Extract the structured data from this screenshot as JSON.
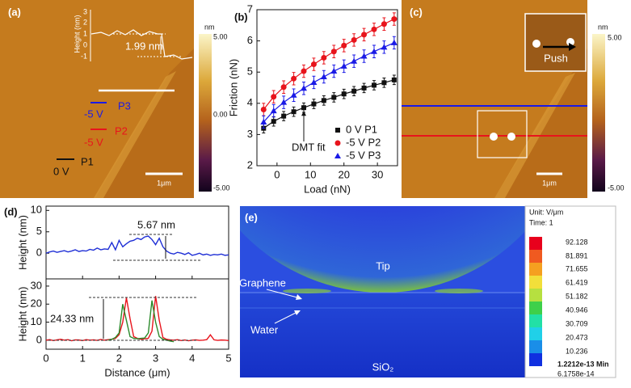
{
  "panels": {
    "a": {
      "label": "(a)",
      "inset_ylabel": "Height (nm)",
      "inset_ticks": [
        "3",
        "2",
        "1",
        "0",
        "-1"
      ],
      "inset_annotation": "1.99 nm",
      "labels": [
        {
          "voltage": "-5 V",
          "point": "P3"
        },
        {
          "voltage": "-5 V",
          "point": "P2"
        },
        {
          "voltage": "0 V",
          "point": "P1"
        }
      ],
      "scale_bar": "1μm",
      "colorbar": {
        "unit": "nm",
        "ticks": [
          "5.00",
          "0.00",
          "-5.00"
        ]
      }
    },
    "c": {
      "label": "(c)",
      "inset_annotation": "Push",
      "scale_bar": "1μm",
      "colorbar": {
        "unit": "nm",
        "ticks": [
          "5.00",
          "-5.00"
        ]
      }
    },
    "e": {
      "label": "(e)",
      "unit": "Unit: V/μm",
      "time": "Time: 1",
      "legend": [
        "92.128",
        "81.891",
        "71.655",
        "61.419",
        "51.182",
        "40.946",
        "30.709",
        "20.473",
        "10.236",
        "1.2212e-13 Min",
        "6.1758e-14"
      ],
      "labels": {
        "tip": "Tip",
        "graphene": "Graphene",
        "water": "Water",
        "substrate": "SiO₂"
      }
    }
  },
  "chart_data": [
    {
      "type": "scatter",
      "panel_label": "(b)",
      "xlabel": "Load (nN)",
      "ylabel": "Friction (nN)",
      "x": [
        -4,
        -1,
        2,
        5,
        8,
        11,
        14,
        17,
        20,
        23,
        26,
        29,
        32,
        35
      ],
      "xlim": [
        -6,
        36
      ],
      "xticks": [
        0,
        10,
        20,
        30
      ],
      "ylim": [
        2,
        7
      ],
      "yticks": [
        2,
        3,
        4,
        5,
        6,
        7
      ],
      "legend": "lower right",
      "annotation": "DMT fit",
      "series": [
        {
          "name": "0 V P1",
          "color": "#111111",
          "marker": "square",
          "values": [
            3.2,
            3.42,
            3.59,
            3.73,
            3.86,
            3.98,
            4.09,
            4.19,
            4.3,
            4.39,
            4.49,
            4.58,
            4.66,
            4.75
          ],
          "errors": [
            0.15,
            0.15,
            0.15,
            0.15,
            0.15,
            0.15,
            0.15,
            0.15,
            0.15,
            0.15,
            0.15,
            0.15,
            0.15,
            0.15
          ]
        },
        {
          "name": "-5 V P2",
          "color": "#e8141c",
          "marker": "circle",
          "values": [
            3.8,
            4.21,
            4.52,
            4.79,
            5.03,
            5.25,
            5.46,
            5.66,
            5.85,
            6.03,
            6.2,
            6.37,
            6.54,
            6.7
          ],
          "errors": [
            0.2,
            0.2,
            0.2,
            0.2,
            0.2,
            0.2,
            0.2,
            0.2,
            0.2,
            0.2,
            0.2,
            0.2,
            0.2,
            0.2
          ]
        },
        {
          "name": "-5 V P3",
          "color": "#1a1ae6",
          "marker": "triangle",
          "values": [
            3.4,
            3.76,
            4.03,
            4.26,
            4.48,
            4.67,
            4.85,
            5.03,
            5.19,
            5.35,
            5.51,
            5.66,
            5.8,
            5.94
          ],
          "errors": [
            0.2,
            0.2,
            0.2,
            0.2,
            0.2,
            0.2,
            0.2,
            0.2,
            0.2,
            0.2,
            0.2,
            0.2,
            0.2,
            0.2
          ]
        }
      ]
    },
    {
      "type": "line",
      "panel_label": "(d)",
      "ylabel": "Height (nm)",
      "annotation": "5.67 nm",
      "x": [
        0,
        0.1,
        0.2,
        0.3,
        0.4,
        0.5,
        0.6,
        0.7,
        0.8,
        0.9,
        1.0,
        1.1,
        1.2,
        1.3,
        1.4,
        1.5,
        1.6,
        1.7,
        1.8,
        1.9,
        2.0,
        2.1,
        2.2,
        2.3,
        2.4,
        2.5,
        2.6,
        2.7,
        2.8,
        2.9,
        3.0,
        3.1,
        3.2,
        3.3,
        3.4,
        3.5,
        3.6,
        3.7,
        3.8,
        3.9,
        4.0,
        4.1,
        4.2,
        4.3,
        4.4,
        4.5,
        4.6,
        4.7,
        4.8,
        4.9,
        5.0
      ],
      "xlim": [
        0,
        5
      ],
      "xticks": [
        0,
        1,
        2,
        3,
        4,
        5
      ],
      "ylim": [
        -6,
        11
      ],
      "yticks": [
        0,
        5,
        10
      ],
      "series": [
        {
          "color": "#1f2fd6",
          "values": [
            0,
            0.3,
            0.5,
            0.2,
            0.4,
            0.6,
            0.3,
            0.5,
            0.8,
            0.4,
            0.6,
            0.5,
            0.9,
            0.7,
            1.2,
            0.8,
            1.0,
            0.9,
            2.5,
            0.8,
            3.0,
            1.5,
            2.2,
            2.8,
            3.0,
            3.5,
            3.2,
            3.8,
            4.0,
            3.2,
            2.0,
            3.5,
            1.5,
            0.5,
            0,
            -0.2,
            0.2,
            0,
            -0.3,
            0.1,
            -0.5,
            -0.3,
            0,
            -0.4,
            -0.2,
            -0.5,
            -0.3,
            -0.4,
            -0.2,
            -0.5,
            -0.4
          ]
        }
      ]
    },
    {
      "type": "line",
      "xlabel": "Distance (μm)",
      "ylabel": "Height (nm)",
      "annotation": "24.33 nm",
      "x": [
        0,
        0.1,
        0.2,
        0.3,
        0.4,
        0.5,
        0.6,
        0.7,
        0.8,
        0.9,
        1.0,
        1.1,
        1.2,
        1.3,
        1.4,
        1.5,
        1.6,
        1.7,
        1.8,
        1.9,
        2.0,
        2.1,
        2.2,
        2.3,
        2.4,
        2.5,
        2.6,
        2.7,
        2.8,
        2.9,
        3.0,
        3.1,
        3.2,
        3.3,
        3.4,
        3.5,
        3.6,
        3.7,
        3.8,
        3.9,
        4.0,
        4.1,
        4.2,
        4.3,
        4.4,
        4.5,
        4.6,
        4.7,
        4.8,
        4.9,
        5.0
      ],
      "xlim": [
        0,
        5
      ],
      "xticks": [
        0,
        1,
        2,
        3,
        4,
        5
      ],
      "ylim": [
        -5,
        34
      ],
      "yticks": [
        0,
        10,
        20,
        30
      ],
      "series": [
        {
          "color": "#e8141c",
          "values": [
            0,
            0.3,
            -0.2,
            0.2,
            0.5,
            0,
            0.3,
            -0.3,
            0.2,
            0.1,
            -0.2,
            0.3,
            0,
            0.2,
            -0.1,
            0.4,
            0,
            0.3,
            0.5,
            1.0,
            3,
            10,
            23.5,
            12,
            2,
            1,
            0.5,
            0.8,
            1,
            5,
            24.5,
            11,
            1.5,
            0.5,
            0.2,
            0,
            0.3,
            -0.2,
            0.1,
            -0.3,
            0,
            0.2,
            -0.1,
            0,
            0.3,
            3.0,
            0.2,
            -0.1,
            0.1,
            0,
            -0.2
          ]
        },
        {
          "color": "#2a8a2a",
          "values": [
            null,
            null,
            null,
            null,
            null,
            null,
            null,
            null,
            null,
            null,
            null,
            null,
            null,
            null,
            null,
            null,
            null,
            0,
            0.5,
            1.5,
            4,
            20,
            11,
            2,
            1,
            0.8,
            1,
            1.2,
            4,
            22,
            10,
            2,
            0.5,
            0,
            -0.5,
            -0.8,
            null,
            null,
            null,
            null,
            null,
            null,
            null,
            null,
            null,
            null,
            null,
            null,
            null,
            null,
            null
          ]
        }
      ]
    }
  ]
}
